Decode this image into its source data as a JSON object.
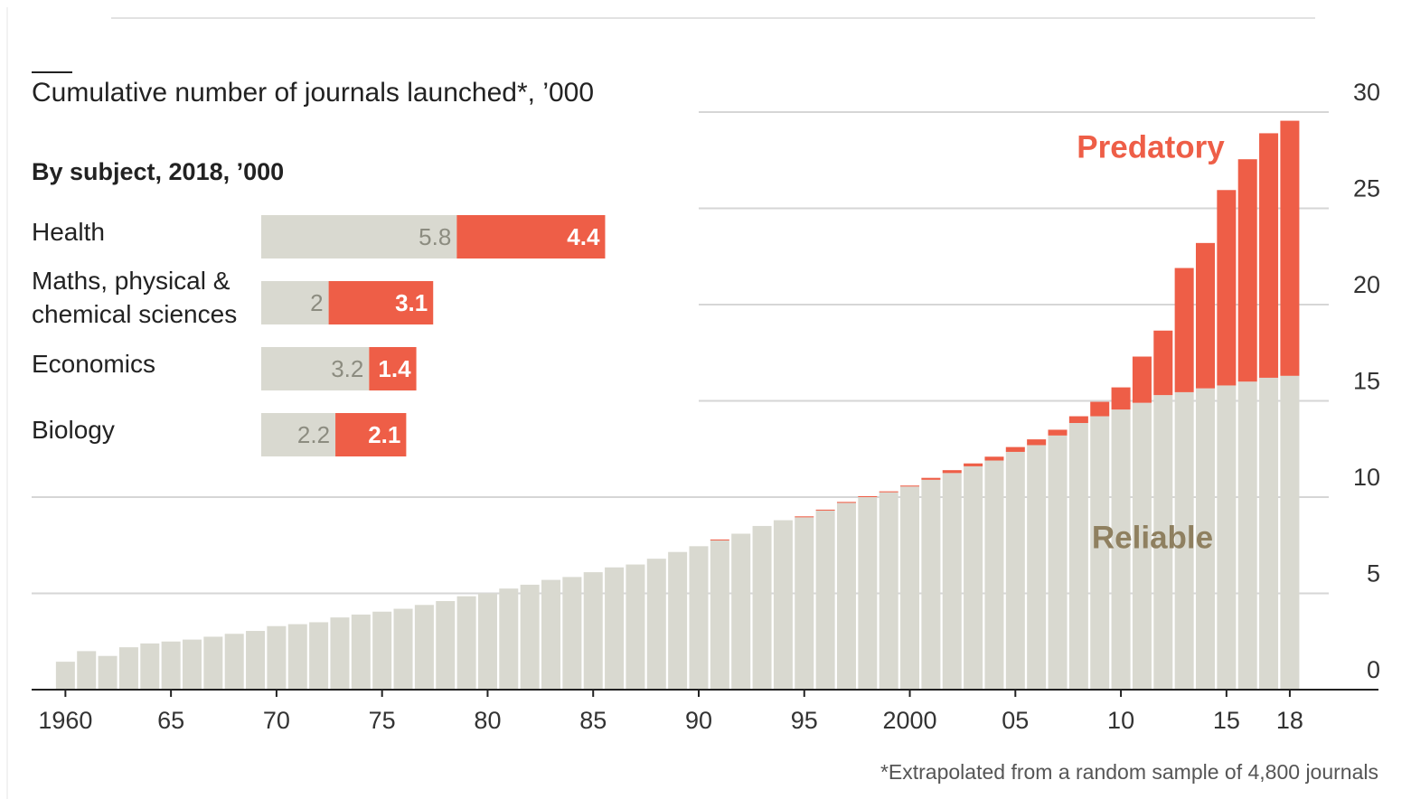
{
  "chart_data": [
    {
      "type": "bar",
      "stacked": true,
      "title": "Cumulative number of journals launched*, ’000",
      "footnote": "*Extrapolated from a random sample of 4,800 journals",
      "x": [
        1960,
        1961,
        1962,
        1963,
        1964,
        1965,
        1966,
        1967,
        1968,
        1969,
        1970,
        1971,
        1972,
        1973,
        1974,
        1975,
        1976,
        1977,
        1978,
        1979,
        1980,
        1981,
        1982,
        1983,
        1984,
        1985,
        1986,
        1987,
        1988,
        1989,
        1990,
        1991,
        1992,
        1993,
        1994,
        1995,
        1996,
        1997,
        1998,
        1999,
        2000,
        2001,
        2002,
        2003,
        2004,
        2005,
        2006,
        2007,
        2008,
        2009,
        2010,
        2011,
        2012,
        2013,
        2014,
        2015,
        2016,
        2017,
        2018
      ],
      "series": [
        {
          "name": "Reliable",
          "color": "#d9d9d0",
          "label_color": "#8f8060",
          "values": [
            1.45,
            2.0,
            1.75,
            2.2,
            2.4,
            2.5,
            2.6,
            2.75,
            2.9,
            3.05,
            3.3,
            3.4,
            3.5,
            3.75,
            3.9,
            4.05,
            4.2,
            4.4,
            4.6,
            4.85,
            5.0,
            5.25,
            5.45,
            5.7,
            5.85,
            6.1,
            6.35,
            6.5,
            6.8,
            7.15,
            7.45,
            7.75,
            8.1,
            8.5,
            8.8,
            8.95,
            9.3,
            9.7,
            10.0,
            10.25,
            10.55,
            10.9,
            11.25,
            11.6,
            11.9,
            12.35,
            12.7,
            13.2,
            13.85,
            14.2,
            14.55,
            14.9,
            15.3,
            15.45,
            15.65,
            15.8,
            16.0,
            16.2,
            16.3
          ]
        },
        {
          "name": "Predatory",
          "color": "#ee5e47",
          "label_color": "#ee5e47",
          "values": [
            0,
            0,
            0,
            0,
            0,
            0,
            0,
            0,
            0,
            0,
            0,
            0,
            0,
            0,
            0,
            0,
            0,
            0,
            0,
            0,
            0,
            0,
            0,
            0,
            0,
            0,
            0,
            0,
            0,
            0,
            0,
            0.05,
            0,
            0,
            0,
            0.05,
            0.05,
            0.05,
            0.05,
            0.05,
            0.05,
            0.1,
            0.15,
            0.15,
            0.2,
            0.25,
            0.3,
            0.3,
            0.35,
            0.75,
            1.15,
            2.4,
            3.35,
            6.45,
            7.55,
            10.15,
            11.55,
            12.7,
            13.25
          ]
        }
      ],
      "xlim": [
        1958.4,
        2022.2
      ],
      "xticks": [
        1960,
        {
          "value": 1965,
          "label": "65"
        },
        {
          "value": 1970,
          "label": "70"
        },
        {
          "value": 1975,
          "label": "75"
        },
        {
          "value": 1980,
          "label": "80"
        },
        {
          "value": 1985,
          "label": "85"
        },
        {
          "value": 1990,
          "label": "90"
        },
        {
          "value": 1995,
          "label": "95"
        },
        2000,
        {
          "value": 2005,
          "label": "05"
        },
        {
          "value": 2010,
          "label": "10"
        },
        {
          "value": 2015,
          "label": "15"
        },
        {
          "value": 2018,
          "label": "18"
        }
      ],
      "ylim": [
        0,
        30
      ],
      "yticks": [
        0,
        5,
        10,
        15,
        20,
        25,
        30
      ],
      "grid": true
    },
    {
      "type": "hbar",
      "stacked": true,
      "title": "By subject, 2018, ’000",
      "categories": [
        "Health",
        "Maths, physical & chemical sciences",
        "Economics",
        "Biology"
      ],
      "series": [
        {
          "name": "Reliable",
          "color": "#d9d9d0",
          "text_color": "#8c8c80",
          "values": [
            5.8,
            2.0,
            3.2,
            2.2
          ]
        },
        {
          "name": "Predatory",
          "color": "#ee5e47",
          "text_color": "#ffffff",
          "values": [
            4.4,
            3.1,
            1.4,
            2.1
          ]
        }
      ]
    }
  ]
}
